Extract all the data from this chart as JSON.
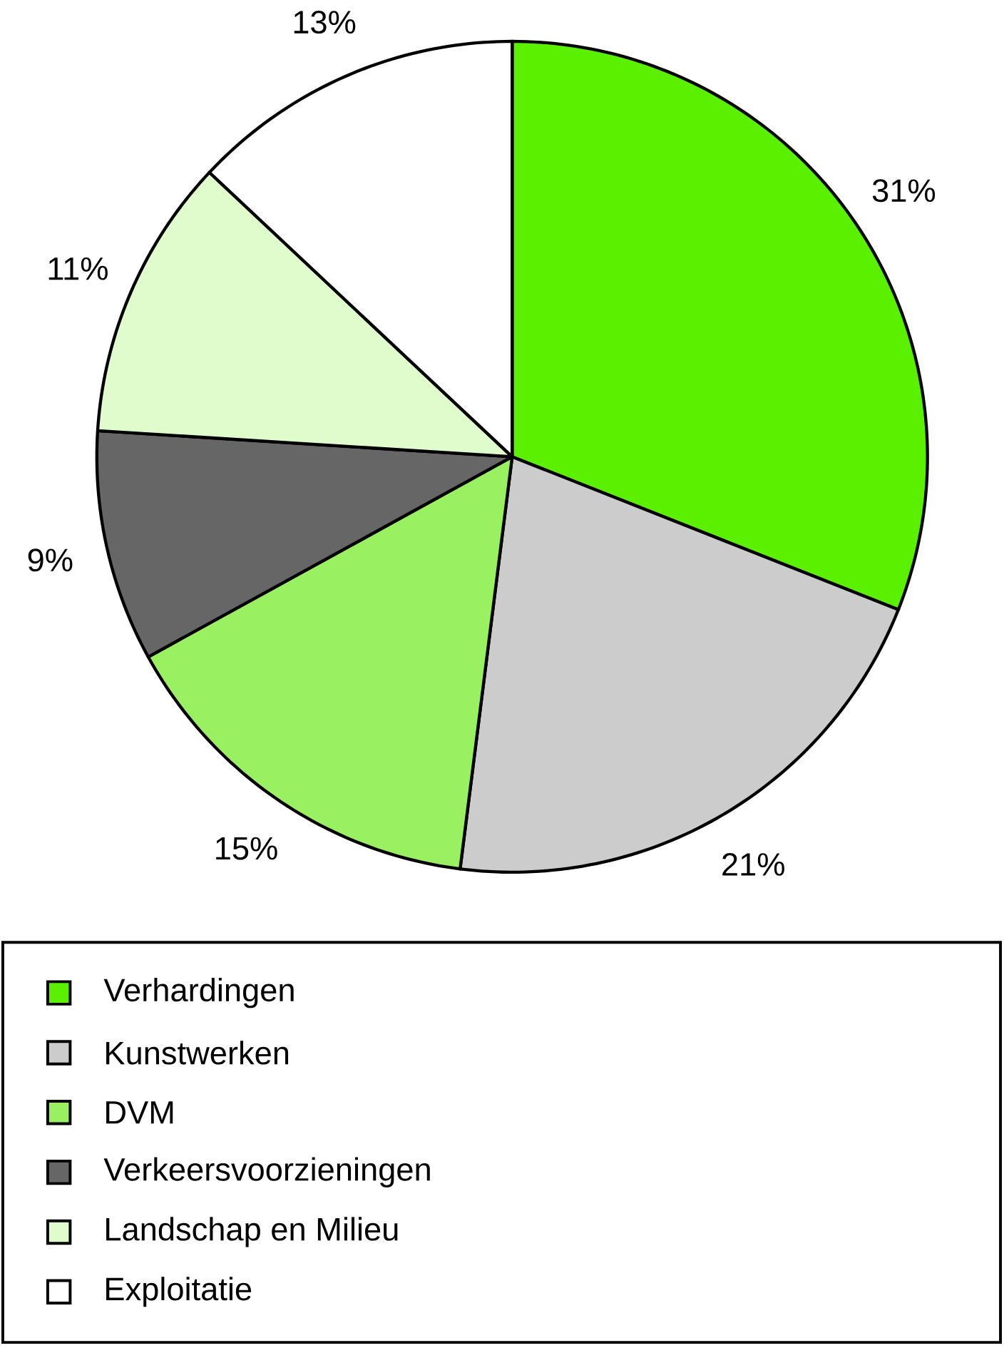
{
  "chart_data": {
    "type": "pie",
    "categories": [
      "Verhardingen",
      "Kunstwerken",
      "DVM",
      "Verkeersvoorzieningen",
      "Landschap en Milieu",
      "Exploitatie"
    ],
    "values": [
      31,
      21,
      15,
      9,
      11,
      13
    ],
    "value_labels": [
      "31%",
      "21%",
      "15%",
      "9%",
      "11%",
      "13%"
    ],
    "colors": [
      "#5af000",
      "#cccccc",
      "#99f060",
      "#666666",
      "#e0fccc",
      "#ffffff"
    ],
    "legend": "bottom"
  }
}
